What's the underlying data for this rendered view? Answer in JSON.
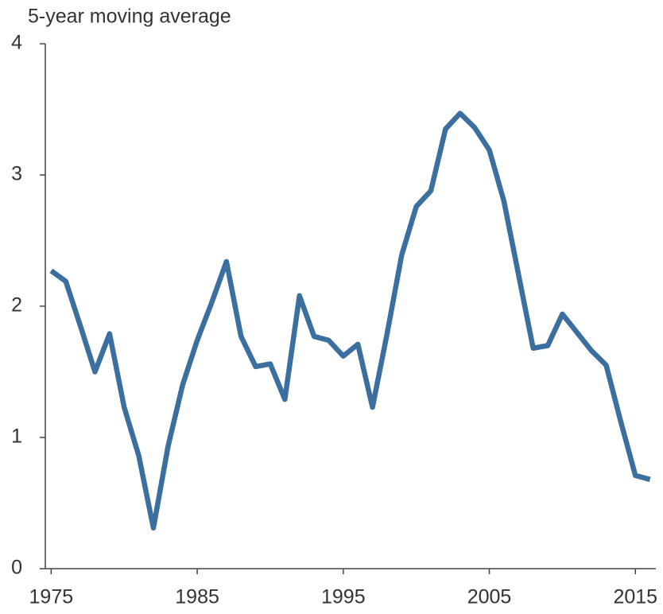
{
  "chart_data": {
    "type": "line",
    "title": "5-year moving average",
    "x": [
      1975,
      1976,
      1977,
      1978,
      1979,
      1980,
      1981,
      1982,
      1983,
      1984,
      1985,
      1986,
      1987,
      1988,
      1989,
      1990,
      1991,
      1992,
      1993,
      1994,
      1995,
      1996,
      1997,
      1998,
      1999,
      2000,
      2001,
      2002,
      2003,
      2004,
      2005,
      2006,
      2007,
      2008,
      2009,
      2010,
      2011,
      2012,
      2013,
      2014,
      2015,
      2016
    ],
    "series": [
      {
        "name": "5-year moving average",
        "color": "#3a6f9f",
        "values": [
          2.27,
          2.19,
          1.85,
          1.5,
          1.79,
          1.23,
          0.86,
          0.31,
          0.93,
          1.4,
          1.74,
          2.03,
          2.34,
          1.77,
          1.54,
          1.56,
          1.29,
          2.08,
          1.77,
          1.74,
          1.62,
          1.71,
          1.23,
          1.79,
          2.39,
          2.76,
          2.88,
          3.35,
          3.47,
          3.36,
          3.19,
          2.8,
          2.24,
          1.68,
          1.7,
          1.94,
          1.8,
          1.66,
          1.55,
          1.12,
          0.71,
          0.68
        ]
      }
    ],
    "xlim": [
      1974.6,
      2016.4
    ],
    "xticks": [
      1975,
      1985,
      1995,
      2005,
      2015
    ],
    "ylim": [
      0,
      4
    ],
    "yticks": [
      0,
      1,
      2,
      3,
      4
    ],
    "grid": false
  }
}
